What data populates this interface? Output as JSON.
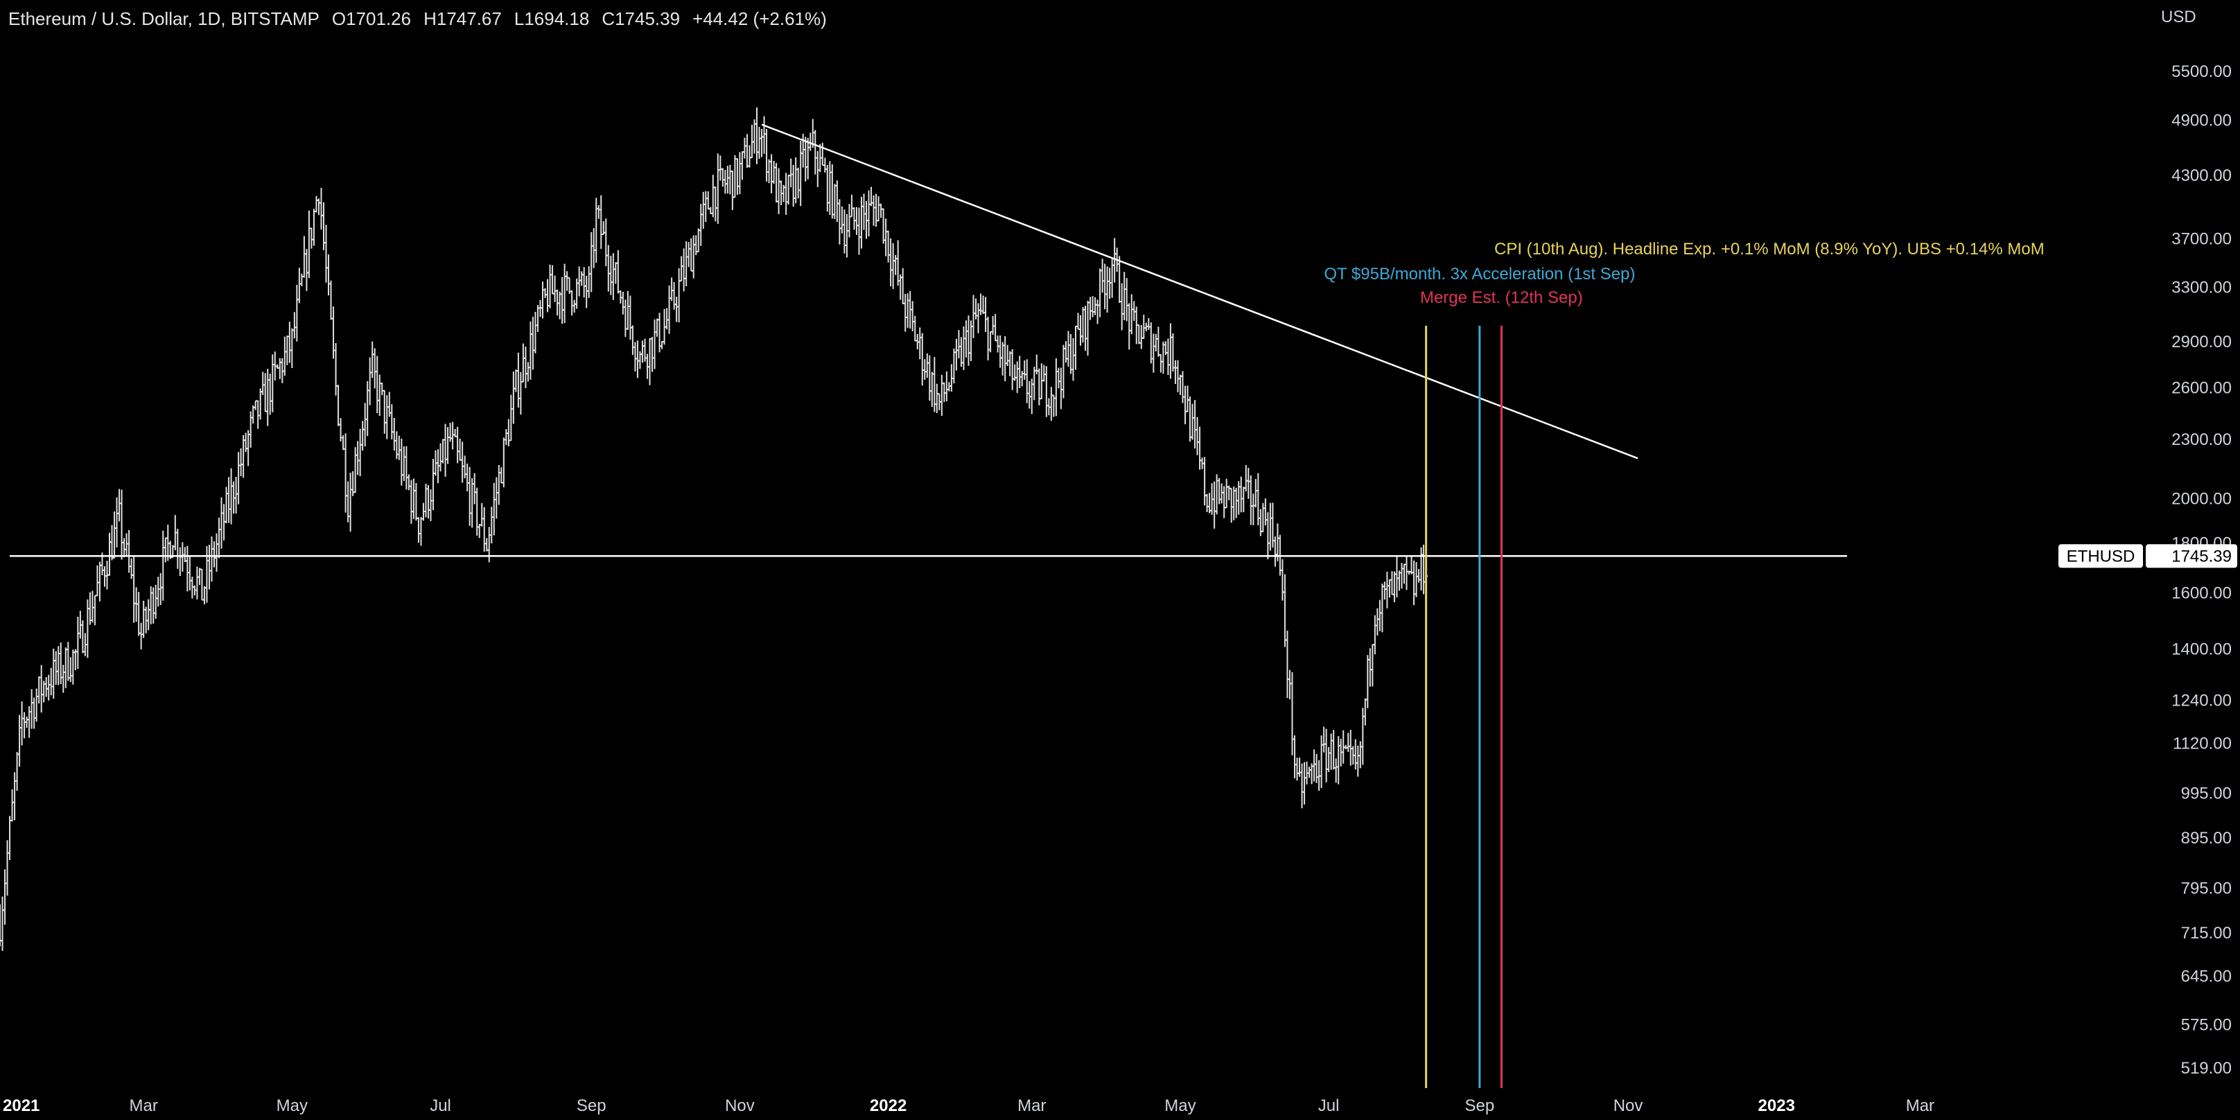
{
  "legend": {
    "symbol": "Ethereum / U.S. Dollar, 1D, BITSTAMP",
    "open": "O1701.26",
    "high": "H1747.67",
    "low": "L1694.18",
    "close": "C1745.39",
    "change": "+44.42 (+2.61%)"
  },
  "chart_data": {
    "type": "ohlc",
    "currency_label": "USD",
    "y_scale": "log",
    "ylim": [
      495,
      6100
    ],
    "y_ticks": [
      5500,
      4900,
      4300,
      3700,
      3300,
      2900,
      2600,
      2300,
      2000,
      1800,
      1600,
      1400,
      1240,
      1120,
      995,
      895,
      795,
      715,
      645,
      575,
      519
    ],
    "y_tick_labels": [
      "5500.00",
      "4900.00",
      "4300.00",
      "3700.00",
      "3300.00",
      "2900.00",
      "2600.00",
      "2300.00",
      "2000.00",
      "1800.00",
      "1600.00",
      "1400.00",
      "1240.00",
      "1120.00",
      "995.00",
      "895.00",
      "795.00",
      "715.00",
      "645.00",
      "575.00",
      "519.00"
    ],
    "x_range": [
      "2021-01-01",
      "2023-04-24"
    ],
    "x_ticks": [
      {
        "label": "2021",
        "date": "2021-01-01",
        "year": true
      },
      {
        "label": "Mar",
        "date": "2021-03-01"
      },
      {
        "label": "May",
        "date": "2021-05-01"
      },
      {
        "label": "Jul",
        "date": "2021-07-01"
      },
      {
        "label": "Sep",
        "date": "2021-09-01"
      },
      {
        "label": "Nov",
        "date": "2021-11-01"
      },
      {
        "label": "2022",
        "date": "2022-01-01",
        "year": true
      },
      {
        "label": "Mar",
        "date": "2022-03-01"
      },
      {
        "label": "May",
        "date": "2022-05-01"
      },
      {
        "label": "Jul",
        "date": "2022-07-01"
      },
      {
        "label": "Sep",
        "date": "2022-09-01"
      },
      {
        "label": "Nov",
        "date": "2022-11-01"
      },
      {
        "label": "2023",
        "date": "2023-01-01",
        "year": true
      },
      {
        "label": "Mar",
        "date": "2023-03-01"
      }
    ],
    "price_path": [
      [
        "2021-01-01",
        735
      ],
      [
        "2021-01-10",
        1180
      ],
      [
        "2021-01-20",
        1300
      ],
      [
        "2021-02-01",
        1380
      ],
      [
        "2021-02-19",
        1900
      ],
      [
        "2021-02-28",
        1450
      ],
      [
        "2021-03-13",
        1850
      ],
      [
        "2021-03-25",
        1600
      ],
      [
        "2021-04-15",
        2400
      ],
      [
        "2021-05-01",
        2900
      ],
      [
        "2021-05-12",
        4200
      ],
      [
        "2021-05-19",
        2600
      ],
      [
        "2021-05-24",
        2000
      ],
      [
        "2021-06-03",
        2700
      ],
      [
        "2021-06-22",
        1900
      ],
      [
        "2021-07-05",
        2300
      ],
      [
        "2021-07-20",
        1800
      ],
      [
        "2021-08-01",
        2600
      ],
      [
        "2021-08-14",
        3250
      ],
      [
        "2021-08-31",
        3300
      ],
      [
        "2021-09-03",
        3900
      ],
      [
        "2021-09-21",
        2800
      ],
      [
        "2021-10-01",
        3000
      ],
      [
        "2021-10-21",
        4150
      ],
      [
        "2021-10-31",
        4300
      ],
      [
        "2021-11-09",
        4800
      ],
      [
        "2021-11-18",
        4000
      ],
      [
        "2021-12-01",
        4600
      ],
      [
        "2021-12-14",
        3800
      ],
      [
        "2021-12-28",
        4000
      ],
      [
        "2022-01-07",
        3200
      ],
      [
        "2022-01-22",
        2500
      ],
      [
        "2022-02-07",
        3100
      ],
      [
        "2022-02-24",
        2600
      ],
      [
        "2022-03-10",
        2600
      ],
      [
        "2022-04-03",
        3500
      ],
      [
        "2022-04-11",
        3000
      ],
      [
        "2022-04-29",
        2800
      ],
      [
        "2022-05-12",
        2000
      ],
      [
        "2022-05-31",
        2000
      ],
      [
        "2022-06-10",
        1800
      ],
      [
        "2022-06-18",
        1000
      ],
      [
        "2022-07-01",
        1100
      ],
      [
        "2022-07-13",
        1050
      ],
      [
        "2022-07-20",
        1550
      ],
      [
        "2022-08-01",
        1650
      ],
      [
        "2022-08-05",
        1620
      ],
      [
        "2022-08-11",
        1745
      ]
    ],
    "trendline_descending": {
      "from": [
        "2021-11-10",
        4850
      ],
      "to": [
        "2022-11-05",
        2200
      ]
    },
    "horizontal_level": {
      "value": 1745.39,
      "from": "2021-01-05",
      "to": "2023-01-30",
      "label": "ETHUSD",
      "value_label": "1745.39"
    },
    "event_lines": [
      {
        "date": "2022-08-10",
        "color": "#e8d35a",
        "text": "CPI (10th Aug). Headline Exp. +0.1% MoM (8.9% YoY). UBS +0.14% MoM"
      },
      {
        "date": "2022-09-01",
        "color": "#3fa9d6",
        "text": "QT $95B/month. 3x Acceleration (1st Sep)"
      },
      {
        "date": "2022-09-10",
        "color": "#e0345c",
        "text": "Merge Est. (12th Sep)"
      }
    ]
  },
  "colors": {
    "bars": "#e0e0e0",
    "lines": "#ffffff",
    "background": "#000000"
  }
}
